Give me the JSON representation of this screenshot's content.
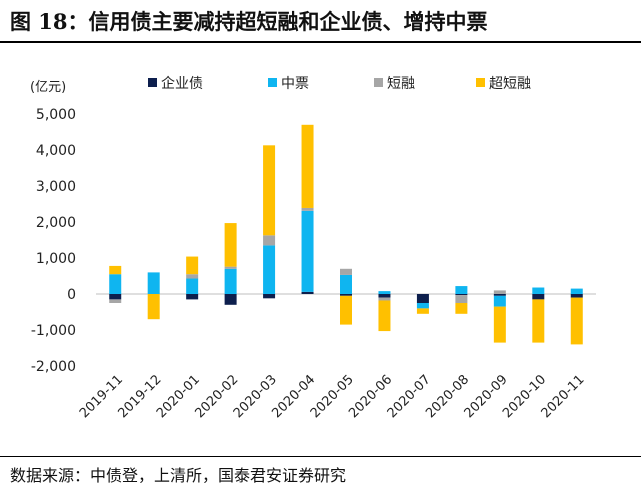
{
  "title": "图 18：信用债主要减持超短融和企业债、增持中票",
  "source": "数据来源：中债登，上清所，国泰君安证券研究",
  "colors": {
    "enterprise": "#0d1f4d",
    "mtn": "#0fb5f0",
    "short": "#a6a6a6",
    "super_short": "#ffc000",
    "axis": "#bfbfbf",
    "text": "#222222"
  },
  "chart_data": {
    "type": "bar",
    "stacked": true,
    "unit_label": "(亿元)",
    "categories": [
      "2019-11",
      "2019-12",
      "2020-01",
      "2020-02",
      "2020-03",
      "2020-04",
      "2020-05",
      "2020-06",
      "2020-07",
      "2020-08",
      "2020-09",
      "2020-10",
      "2020-11"
    ],
    "series": [
      {
        "name": "企业债",
        "key": "enterprise",
        "values": [
          -150,
          0,
          -150,
          -300,
          -120,
          60,
          -50,
          -100,
          -250,
          -30,
          -50,
          -150,
          -100
        ]
      },
      {
        "name": "中票",
        "key": "mtn",
        "values": [
          550,
          600,
          430,
          700,
          1350,
          2250,
          530,
          80,
          -150,
          220,
          -300,
          180,
          150
        ]
      },
      {
        "name": "短融",
        "key": "short",
        "values": [
          -100,
          0,
          120,
          60,
          280,
          80,
          170,
          -80,
          0,
          -220,
          100,
          0,
          0
        ]
      },
      {
        "name": "超短融",
        "key": "super_short",
        "values": [
          230,
          -700,
          490,
          1210,
          2500,
          2310,
          -800,
          -850,
          -150,
          -300,
          -1000,
          -1200,
          -1300
        ]
      }
    ],
    "yticks": [
      -2000,
      -1000,
      0,
      1000,
      2000,
      3000,
      4000,
      5000
    ],
    "ytick_labels": [
      "-2,000",
      "-1,000",
      "0",
      "1,000",
      "2,000",
      "3,000",
      "4,000",
      "5,000"
    ],
    "ylim": [
      -2000,
      5000
    ],
    "legend_position": "top"
  }
}
